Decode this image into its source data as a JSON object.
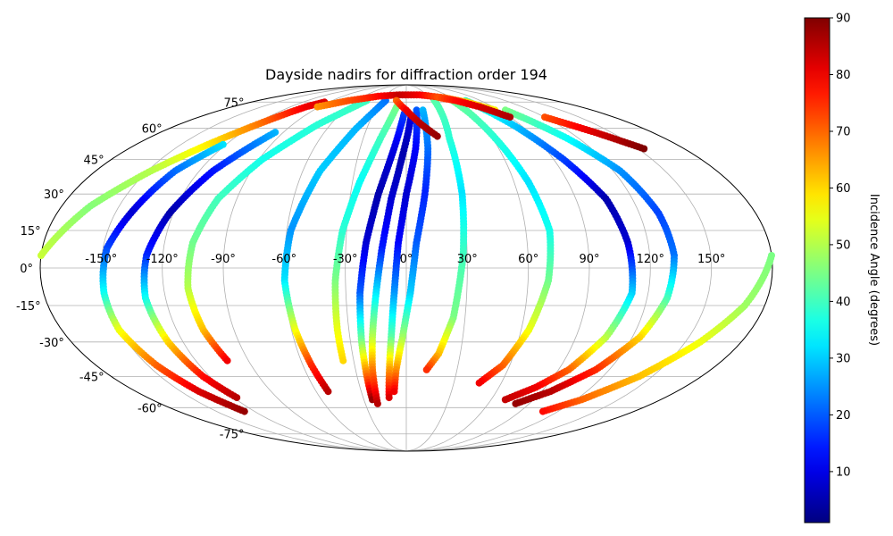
{
  "chart_data": {
    "type": "scatter",
    "projection": "mollweide",
    "title": "Dayside nadirs for diffraction order 194",
    "x_ticks": [
      "-150°",
      "-120°",
      "-90°",
      "-60°",
      "-30°",
      "0°",
      "30°",
      "60°",
      "90°",
      "120°",
      "150°"
    ],
    "x_tick_values": [
      -150,
      -120,
      -90,
      -60,
      -30,
      0,
      30,
      60,
      90,
      120,
      150
    ],
    "y_ticks": [
      "-75°",
      "-60°",
      "-45°",
      "-30°",
      "-15°",
      "0°",
      "15°",
      "30°",
      "45°",
      "60°",
      "75°"
    ],
    "y_tick_values": [
      -75,
      -60,
      -45,
      -30,
      -15,
      0,
      15,
      30,
      45,
      60,
      75
    ],
    "grid": true,
    "colorbar": {
      "label": "Incidence Angle (degrees)",
      "colormap": "jet",
      "range": [
        1,
        90
      ],
      "ticks": [
        "10",
        "20",
        "30",
        "40",
        "50",
        "60",
        "70",
        "80",
        "90"
      ],
      "tick_values": [
        10,
        20,
        30,
        40,
        50,
        60,
        70,
        80,
        90
      ]
    },
    "series": [
      {
        "points": [
          [
            -180,
            5,
            52
          ],
          [
            -165,
            25,
            46
          ],
          [
            -148,
            40,
            50
          ],
          [
            -132,
            52,
            58
          ],
          [
            -118,
            62,
            68
          ],
          [
            -104,
            72,
            80
          ],
          [
            -95,
            75,
            82
          ]
        ]
      },
      {
        "points": [
          [
            -122,
            52,
            32
          ],
          [
            -134,
            40,
            22
          ],
          [
            -142,
            22,
            8
          ],
          [
            -148,
            8,
            18
          ],
          [
            -150,
            -10,
            35
          ],
          [
            -150,
            -25,
            55
          ],
          [
            -145,
            -40,
            70
          ],
          [
            -138,
            -52,
            82
          ],
          [
            -128,
            -62,
            88
          ]
        ]
      },
      {
        "points": [
          [
            -96,
            58,
            28
          ],
          [
            -112,
            40,
            14
          ],
          [
            -122,
            22,
            5
          ],
          [
            -128,
            5,
            15
          ],
          [
            -130,
            -12,
            35
          ],
          [
            -128,
            -30,
            60
          ],
          [
            -124,
            -45,
            78
          ],
          [
            -118,
            -55,
            85
          ]
        ]
      },
      {
        "points": [
          [
            -48,
            76,
            40
          ],
          [
            -70,
            62,
            38
          ],
          [
            -88,
            45,
            36
          ],
          [
            -100,
            28,
            40
          ],
          [
            -106,
            10,
            44
          ],
          [
            -108,
            -8,
            50
          ],
          [
            -106,
            -25,
            62
          ],
          [
            -102,
            -38,
            80
          ]
        ]
      },
      {
        "points": [
          [
            -25,
            76,
            22
          ],
          [
            -38,
            60,
            28
          ],
          [
            -50,
            40,
            30
          ],
          [
            -58,
            15,
            25
          ],
          [
            -60,
            -5,
            32
          ],
          [
            -58,
            -25,
            55
          ],
          [
            -55,
            -40,
            75
          ],
          [
            -52,
            -52,
            85
          ]
        ]
      },
      {
        "points": [
          [
            -10,
            72,
            45
          ],
          [
            -18,
            55,
            40
          ],
          [
            -26,
            35,
            35
          ],
          [
            -32,
            15,
            38
          ],
          [
            -35,
            -5,
            45
          ],
          [
            -36,
            -25,
            55
          ],
          [
            -36,
            -38,
            60
          ]
        ]
      },
      {
        "points": [
          [
            -2,
            68,
            18
          ],
          [
            -8,
            50,
            10
          ],
          [
            -15,
            30,
            5
          ],
          [
            -20,
            10,
            8
          ],
          [
            -23,
            -10,
            20
          ],
          [
            -24,
            -30,
            45
          ],
          [
            -24,
            -45,
            70
          ],
          [
            -24,
            -56,
            88
          ]
        ]
      },
      {
        "points": [
          [
            4,
            66,
            10
          ],
          [
            -2,
            48,
            5
          ],
          [
            -8,
            28,
            8
          ],
          [
            -12,
            8,
            14
          ],
          [
            -15,
            -10,
            32
          ],
          [
            -18,
            -28,
            50
          ],
          [
            -20,
            -42,
            68
          ],
          [
            -21,
            -58,
            85
          ]
        ]
      },
      {
        "points": [
          [
            10,
            70,
            20
          ],
          [
            6,
            50,
            12
          ],
          [
            0,
            30,
            8
          ],
          [
            -4,
            10,
            12
          ],
          [
            -6,
            -10,
            25
          ],
          [
            -8,
            -28,
            42
          ],
          [
            -10,
            -42,
            65
          ],
          [
            -12,
            -55,
            82
          ]
        ]
      },
      {
        "points": [
          [
            16,
            70,
            28
          ],
          [
            14,
            50,
            22
          ],
          [
            10,
            30,
            15
          ],
          [
            5,
            10,
            20
          ],
          [
            2,
            -10,
            30
          ],
          [
            -2,
            -28,
            48
          ],
          [
            -6,
            -42,
            66
          ],
          [
            -8,
            -52,
            80
          ]
        ]
      },
      {
        "points": [
          [
            34,
            76,
            42
          ],
          [
            30,
            55,
            38
          ],
          [
            30,
            30,
            32
          ],
          [
            28,
            5,
            40
          ],
          [
            24,
            -20,
            45
          ],
          [
            18,
            -35,
            62
          ],
          [
            12,
            -42,
            75
          ]
        ]
      },
      {
        "points": [
          [
            56,
            76,
            44
          ],
          [
            62,
            55,
            38
          ],
          [
            68,
            35,
            32
          ],
          [
            72,
            15,
            36
          ],
          [
            70,
            -5,
            44
          ],
          [
            64,
            -25,
            55
          ],
          [
            56,
            -40,
            70
          ],
          [
            46,
            -48,
            80
          ]
        ]
      },
      {
        "points": [
          [
            72,
            76,
            40
          ],
          [
            84,
            62,
            30
          ],
          [
            96,
            45,
            18
          ],
          [
            106,
            28,
            5
          ],
          [
            110,
            10,
            8
          ],
          [
            112,
            -10,
            30
          ],
          [
            106,
            -28,
            50
          ],
          [
            96,
            -42,
            70
          ],
          [
            84,
            -50,
            80
          ],
          [
            70,
            -56,
            84
          ]
        ]
      },
      {
        "points": [
          [
            96,
            70,
            45
          ],
          [
            112,
            55,
            35
          ],
          [
            124,
            40,
            25
          ],
          [
            130,
            22,
            18
          ],
          [
            132,
            5,
            22
          ],
          [
            130,
            -12,
            40
          ],
          [
            124,
            -28,
            60
          ],
          [
            112,
            -42,
            75
          ],
          [
            96,
            -52,
            85
          ],
          [
            80,
            -58,
            88
          ]
        ]
      },
      {
        "points": [
          [
            120,
            66,
            72
          ],
          [
            138,
            58,
            82
          ],
          [
            154,
            50,
            90
          ]
        ]
      },
      {
        "points": [
          [
            180,
            5,
            45
          ],
          [
            170,
            -15,
            48
          ],
          [
            158,
            -30,
            55
          ],
          [
            142,
            -45,
            62
          ],
          [
            124,
            -56,
            70
          ],
          [
            108,
            -62,
            78
          ]
        ]
      },
      {
        "points": [
          [
            -92,
            72,
            66
          ],
          [
            -70,
            76,
            72
          ],
          [
            -40,
            79,
            78
          ],
          [
            -10,
            80,
            84
          ],
          [
            20,
            80,
            80
          ],
          [
            50,
            78,
            70
          ],
          [
            70,
            75,
            62
          ],
          [
            86,
            70,
            58
          ]
        ]
      },
      {
        "points": [
          [
            -12,
            76,
            70
          ],
          [
            0,
            70,
            80
          ],
          [
            12,
            62,
            85
          ],
          [
            22,
            56,
            88
          ]
        ]
      },
      {
        "points": [
          [
            44,
            78,
            72
          ],
          [
            60,
            76,
            78
          ],
          [
            76,
            72,
            82
          ],
          [
            90,
            66,
            86
          ]
        ]
      }
    ]
  }
}
